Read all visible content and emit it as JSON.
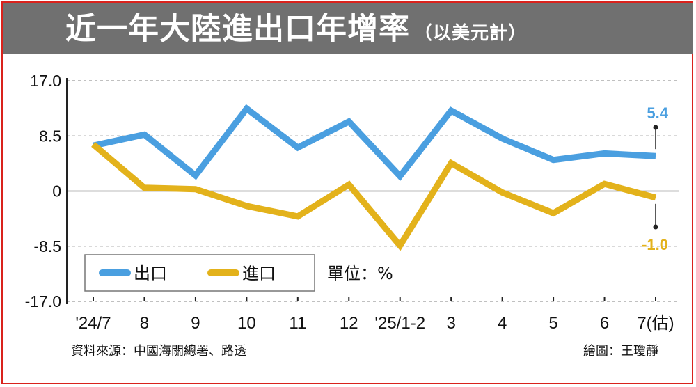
{
  "title": "近一年大陸進出口年增率",
  "subtitle": "（以美元計）",
  "unit": "單位：%",
  "source": "資料來源：中國海關總署、路透",
  "credit": "繪圖：王瓊靜",
  "colors": {
    "export": "#4a9fe0",
    "import": "#e3b21b",
    "title_bg": "#707070",
    "border": "#d9221c"
  },
  "chart_data": {
    "type": "line",
    "categories": [
      "'24/7",
      "8",
      "9",
      "10",
      "11",
      "12",
      "'25/1-2",
      "3",
      "4",
      "5",
      "6",
      "7(估)"
    ],
    "series": [
      {
        "name": "出口",
        "values": [
          7.0,
          8.7,
          2.4,
          12.7,
          6.7,
          10.7,
          2.3,
          12.4,
          8.1,
          4.8,
          5.8,
          5.4
        ]
      },
      {
        "name": "進口",
        "values": [
          7.2,
          0.5,
          0.3,
          -2.3,
          -3.9,
          1.0,
          -8.4,
          4.3,
          -0.2,
          -3.4,
          1.1,
          -1.0
        ]
      }
    ],
    "yticks": [
      "17.0",
      "8.5",
      "0",
      "-8.5",
      "-17.0"
    ],
    "ylim": [
      -17.0,
      17.0
    ],
    "end_labels": {
      "export": "5.4",
      "import": "-1.0"
    },
    "legend_placement": "bottom-left",
    "grid": true
  }
}
